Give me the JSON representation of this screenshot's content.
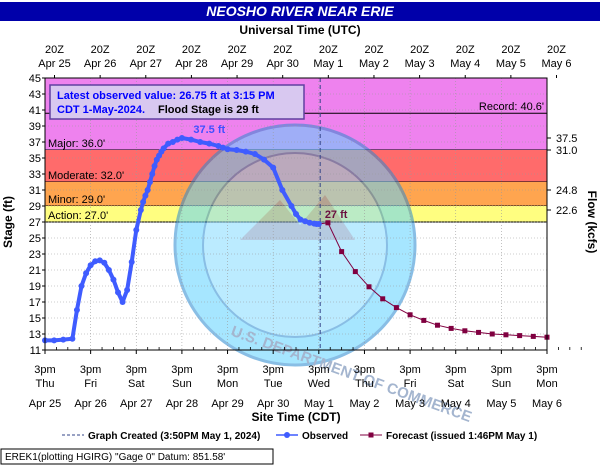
{
  "chart_data": {
    "type": "line",
    "title": "NEOSHO RIVER NEAR ERIE",
    "top_axis_title": "Universal Time (UTC)",
    "xlabel": "Site Time (CDT)",
    "ylabel": "Stage (ft)",
    "y2label": "Flow (kcfs)",
    "ylim": [
      11,
      45
    ],
    "y_ticks": [
      11,
      13,
      15,
      17,
      19,
      21,
      23,
      25,
      27,
      29,
      31,
      33,
      35,
      37,
      39,
      41,
      43,
      45
    ],
    "xlim": [
      "2024-04-25 15:00",
      "2024-05-06 15:00"
    ],
    "grid": true,
    "top_ticks": [
      {
        "time": "20Z",
        "date": "Apr 25"
      },
      {
        "time": "20Z",
        "date": "Apr 26"
      },
      {
        "time": "20Z",
        "date": "Apr 27"
      },
      {
        "time": "20Z",
        "date": "Apr 28"
      },
      {
        "time": "20Z",
        "date": "Apr 29"
      },
      {
        "time": "20Z",
        "date": "Apr 30"
      },
      {
        "time": "20Z",
        "date": "May 1"
      },
      {
        "time": "20Z",
        "date": "May 2"
      },
      {
        "time": "20Z",
        "date": "May 3"
      },
      {
        "time": "20Z",
        "date": "May 4"
      },
      {
        "time": "20Z",
        "date": "May 5"
      },
      {
        "time": "20Z",
        "date": "May 6"
      }
    ],
    "bottom_ticks": [
      {
        "time": "3pm",
        "day": "Thu",
        "date": "Apr 25"
      },
      {
        "time": "3pm",
        "day": "Fri",
        "date": "Apr 26"
      },
      {
        "time": "3pm",
        "day": "Sat",
        "date": "Apr 27"
      },
      {
        "time": "3pm",
        "day": "Sun",
        "date": "Apr 28"
      },
      {
        "time": "3pm",
        "day": "Mon",
        "date": "Apr 29"
      },
      {
        "time": "3pm",
        "day": "Tue",
        "date": "Apr 30"
      },
      {
        "time": "3pm",
        "day": "Wed",
        "date": "May 1"
      },
      {
        "time": "3pm",
        "day": "Thu",
        "date": "May 2"
      },
      {
        "time": "3pm",
        "day": "Fri",
        "date": "May 3"
      },
      {
        "time": "3pm",
        "day": "Sat",
        "date": "May 4"
      },
      {
        "time": "3pm",
        "day": "Sun",
        "date": "May 5"
      },
      {
        "time": "3pm",
        "day": "Mon",
        "date": "May 6"
      }
    ],
    "flow_ticks": [
      {
        "stage": 37.5,
        "label": "37.5"
      },
      {
        "stage": 36.0,
        "label": "31.0"
      },
      {
        "stage": 31.0,
        "label": "24.8"
      },
      {
        "stage": 28.5,
        "label": "22.6"
      }
    ],
    "flood_categories": [
      {
        "name": "Major",
        "label": "Major: 36.0'",
        "from": 36.0,
        "to": 45,
        "color": "#ee82ee"
      },
      {
        "name": "Moderate",
        "label": "Moderate: 32.0'",
        "from": 32.0,
        "to": 36.0,
        "color": "#ff6b6b"
      },
      {
        "name": "Minor",
        "label": "Minor: 29.0'",
        "from": 29.0,
        "to": 32.0,
        "color": "#ffa54f"
      },
      {
        "name": "Action",
        "label": "Action: 27.0'",
        "from": 27.0,
        "to": 29.0,
        "color": "#fffe80"
      }
    ],
    "record": {
      "label": "Record: 40.6'",
      "value": 40.6
    },
    "info_box": {
      "line1": "Latest observed value: 26.75 ft at 3:15 PM",
      "line2": "CDT 1-May-2024.",
      "line2b": "Flood Stage is 29 ft"
    },
    "peak_label": {
      "text": "37.5 ft",
      "x": 3.6,
      "y": 37.5
    },
    "latest_label": {
      "text": "27 ft",
      "x": 6.0,
      "y": 27.0
    },
    "created_line_x": 6.03,
    "series": [
      {
        "name": "Observed",
        "color": "#3f5cff",
        "x": [
          0.0,
          0.2,
          0.4,
          0.6,
          0.7,
          0.8,
          0.9,
          1.0,
          1.1,
          1.2,
          1.3,
          1.4,
          1.5,
          1.6,
          1.7,
          1.8,
          1.9,
          2.0,
          2.1,
          2.15,
          2.2,
          2.25,
          2.3,
          2.35,
          2.4,
          2.45,
          2.5,
          2.55,
          2.6,
          2.7,
          2.8,
          2.9,
          3.0,
          3.2,
          3.4,
          3.6,
          3.8,
          3.9,
          4.0,
          4.2,
          4.4,
          4.6,
          4.8,
          5.0,
          5.2,
          5.4,
          5.5,
          5.6,
          5.7,
          5.8,
          5.9,
          5.95,
          6.0
        ],
        "y": [
          12.2,
          12.2,
          12.3,
          12.4,
          16.0,
          19.0,
          20.6,
          21.6,
          22.1,
          22.2,
          21.9,
          21.0,
          19.8,
          18.2,
          17.0,
          18.5,
          22.0,
          26.0,
          28.5,
          29.5,
          30.3,
          31.0,
          32.0,
          33.0,
          34.0,
          34.8,
          35.3,
          35.8,
          36.2,
          36.8,
          37.0,
          37.3,
          37.5,
          37.3,
          37.0,
          36.8,
          36.5,
          36.3,
          36.1,
          36.0,
          35.8,
          35.5,
          34.8,
          33.8,
          31.0,
          29.0,
          28.0,
          27.3,
          27.1,
          26.9,
          26.8,
          26.75,
          26.75
        ]
      },
      {
        "name": "Forecast",
        "color": "#800040",
        "x": [
          6.0,
          6.2,
          6.5,
          6.8,
          7.1,
          7.4,
          7.7,
          8.0,
          8.3,
          8.6,
          8.9,
          9.2,
          9.5,
          9.8,
          10.1,
          10.4,
          10.7,
          11.0
        ],
        "y": [
          26.75,
          26.9,
          23.3,
          20.8,
          18.9,
          17.4,
          16.3,
          15.4,
          14.7,
          14.1,
          13.7,
          13.4,
          13.2,
          13.0,
          12.9,
          12.8,
          12.7,
          12.6
        ]
      }
    ],
    "legend": {
      "placement": "bottom",
      "created": "Graph Created (3:50PM May 1, 2024)",
      "observed": "Observed",
      "forecast": "Forecast (issued 1:46PM May 1)"
    },
    "footer": "EREK1(plotting HGIRG) \"Gage 0\" Datum: 851.58'",
    "colors": {
      "background_plot": "#33ccff",
      "title_bar": "#0000aa"
    }
  }
}
